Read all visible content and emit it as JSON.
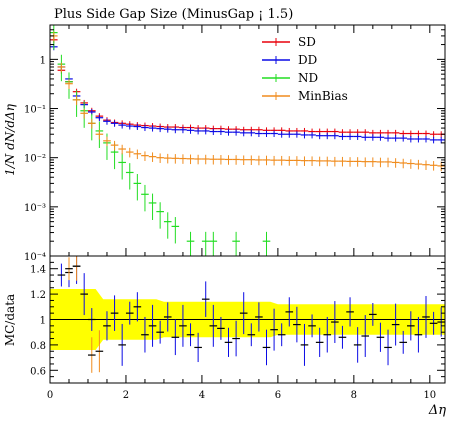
{
  "chart_data": [
    {
      "type": "scatter",
      "title": "Plus Side Gap Size (MinusGap ¡ 1.5)",
      "ylabel": "1/N dN/dΔη",
      "xlim": [
        0,
        10.4
      ],
      "ylog": true,
      "ylim": [
        0.0001,
        5
      ],
      "y_ticks": [
        {
          "v": 0.0001,
          "label": "10⁻⁴"
        },
        {
          "v": 0.001,
          "label": "10⁻³"
        },
        {
          "v": 0.01,
          "label": "10⁻²"
        },
        {
          "v": 0.1,
          "label": "10⁻¹"
        },
        {
          "v": 1,
          "label": "1"
        }
      ],
      "legend_position": "top-right",
      "series": [
        {
          "name": "SD",
          "color": "#e8000b",
          "x": [
            0.1,
            0.3,
            0.5,
            0.7,
            0.9,
            1.1,
            1.3,
            1.5,
            1.7,
            1.9,
            2.1,
            2.3,
            2.5,
            2.7,
            2.9,
            3.1,
            3.3,
            3.5,
            3.7,
            3.9,
            4.1,
            4.3,
            4.5,
            4.7,
            4.9,
            5.1,
            5.3,
            5.5,
            5.7,
            5.9,
            6.1,
            6.3,
            6.5,
            6.7,
            6.9,
            7.1,
            7.3,
            7.5,
            7.7,
            7.9,
            8.1,
            8.3,
            8.5,
            8.7,
            8.9,
            9.1,
            9.3,
            9.5,
            9.7,
            9.9,
            10.1,
            10.3
          ],
          "y": [
            2.5,
            0.6,
            0.35,
            0.22,
            0.13,
            0.09,
            0.07,
            0.058,
            0.052,
            0.05,
            0.048,
            0.046,
            0.045,
            0.044,
            0.043,
            0.042,
            0.042,
            0.041,
            0.041,
            0.04,
            0.04,
            0.039,
            0.039,
            0.038,
            0.038,
            0.037,
            0.037,
            0.037,
            0.036,
            0.036,
            0.036,
            0.035,
            0.035,
            0.035,
            0.034,
            0.034,
            0.034,
            0.034,
            0.033,
            0.033,
            0.033,
            0.033,
            0.032,
            0.032,
            0.032,
            0.032,
            0.031,
            0.031,
            0.031,
            0.031,
            0.03,
            0.03
          ]
        },
        {
          "name": "DD",
          "color": "#0a0ae6",
          "x": [
            0.1,
            0.3,
            0.5,
            0.7,
            0.9,
            1.1,
            1.3,
            1.5,
            1.7,
            1.9,
            2.1,
            2.3,
            2.5,
            2.7,
            2.9,
            3.1,
            3.3,
            3.5,
            3.7,
            3.9,
            4.1,
            4.3,
            4.5,
            4.7,
            4.9,
            5.1,
            5.3,
            5.5,
            5.7,
            5.9,
            6.1,
            6.3,
            6.5,
            6.7,
            6.9,
            7.1,
            7.3,
            7.5,
            7.7,
            7.9,
            8.1,
            8.3,
            8.5,
            8.7,
            8.9,
            9.1,
            9.3,
            9.5,
            9.7,
            9.9,
            10.1,
            10.3
          ],
          "y": [
            1.8,
            0.7,
            0.4,
            0.18,
            0.12,
            0.085,
            0.065,
            0.055,
            0.05,
            0.046,
            0.044,
            0.043,
            0.041,
            0.04,
            0.039,
            0.038,
            0.037,
            0.037,
            0.036,
            0.035,
            0.035,
            0.034,
            0.034,
            0.033,
            0.033,
            0.032,
            0.032,
            0.031,
            0.031,
            0.031,
            0.03,
            0.03,
            0.03,
            0.029,
            0.029,
            0.028,
            0.028,
            0.028,
            0.027,
            0.027,
            0.027,
            0.026,
            0.026,
            0.026,
            0.025,
            0.025,
            0.025,
            0.024,
            0.024,
            0.024,
            0.023,
            0.023
          ]
        },
        {
          "name": "ND",
          "color": "#22dd22",
          "x": [
            0.1,
            0.3,
            0.5,
            0.7,
            0.9,
            1.1,
            1.3,
            1.5,
            1.7,
            1.9,
            2.1,
            2.3,
            2.5,
            2.7,
            2.9,
            3.1,
            3.3,
            3.7,
            4.1,
            4.3,
            4.9,
            5.7
          ],
          "y": [
            3.5,
            0.8,
            0.35,
            0.15,
            0.09,
            0.05,
            0.035,
            0.02,
            0.013,
            0.008,
            0.005,
            0.003,
            0.0018,
            0.0012,
            0.0008,
            0.0005,
            0.0004,
            0.0002,
            0.0002,
            0.0002,
            0.0002,
            0.0002
          ]
        },
        {
          "name": "MinBias",
          "color": "#f08c1e",
          "x": [
            0.1,
            0.3,
            0.5,
            0.7,
            0.9,
            1.1,
            1.3,
            1.5,
            1.7,
            1.9,
            2.1,
            2.3,
            2.5,
            2.7,
            2.9,
            3.1,
            3.3,
            3.5,
            3.7,
            3.9,
            4.1,
            4.3,
            4.5,
            4.7,
            4.9,
            5.1,
            5.3,
            5.5,
            5.7,
            5.9,
            6.1,
            6.3,
            6.5,
            6.7,
            6.9,
            7.1,
            7.3,
            7.5,
            7.7,
            7.9,
            8.1,
            8.3,
            8.5,
            8.7,
            8.9,
            9.1,
            9.3,
            9.5,
            9.7,
            9.9,
            10.1,
            10.3
          ],
          "y": [
            3.0,
            0.7,
            0.32,
            0.15,
            0.08,
            0.05,
            0.03,
            0.022,
            0.018,
            0.015,
            0.013,
            0.012,
            0.011,
            0.0105,
            0.01,
            0.0098,
            0.0097,
            0.0096,
            0.0095,
            0.0094,
            0.0094,
            0.0093,
            0.0093,
            0.0092,
            0.0092,
            0.0091,
            0.0091,
            0.009,
            0.009,
            0.0089,
            0.0089,
            0.0088,
            0.0088,
            0.0087,
            0.0087,
            0.0086,
            0.0086,
            0.0085,
            0.0085,
            0.0084,
            0.0084,
            0.0083,
            0.0083,
            0.0082,
            0.0082,
            0.008,
            0.0078,
            0.0076,
            0.0074,
            0.0072,
            0.007,
            0.0068
          ]
        }
      ]
    },
    {
      "type": "scatter",
      "ylabel": "MC/data",
      "xlabel": "Δη",
      "xlim": [
        0,
        10.4
      ],
      "ylim": [
        0.5,
        1.5
      ],
      "x_ticks": [
        0,
        2,
        4,
        6,
        8,
        10
      ],
      "y_ticks": [
        0.6,
        0.8,
        1,
        1.2,
        1.4
      ],
      "band_color": "#ffff00",
      "reference_line": 1,
      "series": [
        {
          "name": "DD",
          "color": "#0a0ae6",
          "x": [
            0.3,
            0.5,
            0.7,
            0.9,
            1.1,
            1.5,
            1.7,
            1.9,
            2.1,
            2.3,
            2.5,
            2.7,
            2.9,
            3.1,
            3.3,
            3.5,
            3.7,
            3.9,
            4.1,
            4.3,
            4.5,
            4.7,
            4.9,
            5.1,
            5.3,
            5.5,
            5.7,
            5.9,
            6.1,
            6.3,
            6.5,
            6.7,
            6.9,
            7.1,
            7.3,
            7.5,
            7.7,
            7.9,
            8.1,
            8.3,
            8.5,
            8.7,
            8.9,
            9.1,
            9.3,
            9.5,
            9.7,
            9.9,
            10.1,
            10.3
          ],
          "y": [
            1.35,
            1.37,
            1.42,
            1.2,
            1.0,
            0.95,
            1.05,
            0.8,
            1.05,
            1.1,
            0.88,
            0.95,
            0.9,
            1.02,
            0.86,
            0.95,
            0.88,
            0.78,
            1.16,
            0.95,
            0.93,
            0.82,
            0.85,
            1.05,
            0.88,
            1.02,
            0.78,
            0.92,
            0.88,
            1.06,
            0.96,
            0.8,
            0.95,
            0.82,
            0.88,
            0.98,
            0.86,
            1.06,
            0.8,
            0.87,
            1.04,
            0.86,
            0.78,
            0.96,
            0.82,
            0.95,
            0.88,
            1.02,
            0.97,
            0.98
          ]
        },
        {
          "name": "MinBias",
          "color": "#f08c1e",
          "x": [
            0.5,
            0.7,
            1.1,
            1.3
          ],
          "y": [
            1.4,
            1.42,
            0.72,
            0.75
          ]
        }
      ]
    }
  ]
}
